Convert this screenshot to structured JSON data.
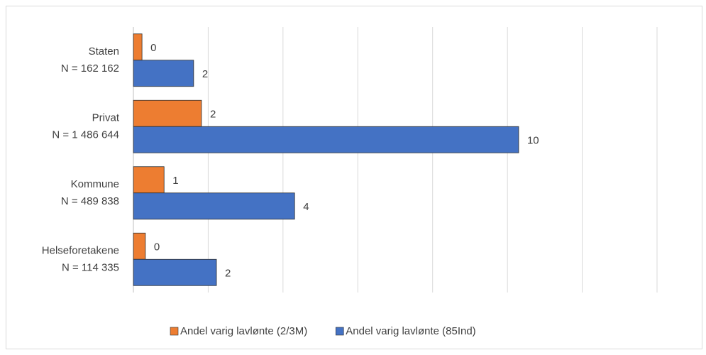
{
  "chart_data": {
    "type": "hbar",
    "categories": [
      "Staten\nN = 162 162",
      "Privat\nN = 1 486 644",
      "Kommune\nN = 489 838",
      "Helseforetakene\nN = 114 335"
    ],
    "series": [
      {
        "name": "Andel varig lavlønte (2/3M)",
        "color": "#ed7d31",
        "values": [
          0.23,
          1.82,
          0.82,
          0.32
        ],
        "value_labels": [
          "0",
          "2",
          "1",
          "0"
        ]
      },
      {
        "name": "Andel varig lavlønte (85Ind)",
        "color": "#4472c4",
        "values": [
          1.61,
          10.3,
          4.31,
          2.22
        ],
        "value_labels": [
          "2",
          "10",
          "4",
          "2"
        ]
      }
    ],
    "xlim": [
      0,
      14
    ],
    "xticks": [
      0,
      2,
      4,
      6,
      8,
      10,
      12,
      14
    ],
    "grid": true,
    "legend": "bottom"
  }
}
